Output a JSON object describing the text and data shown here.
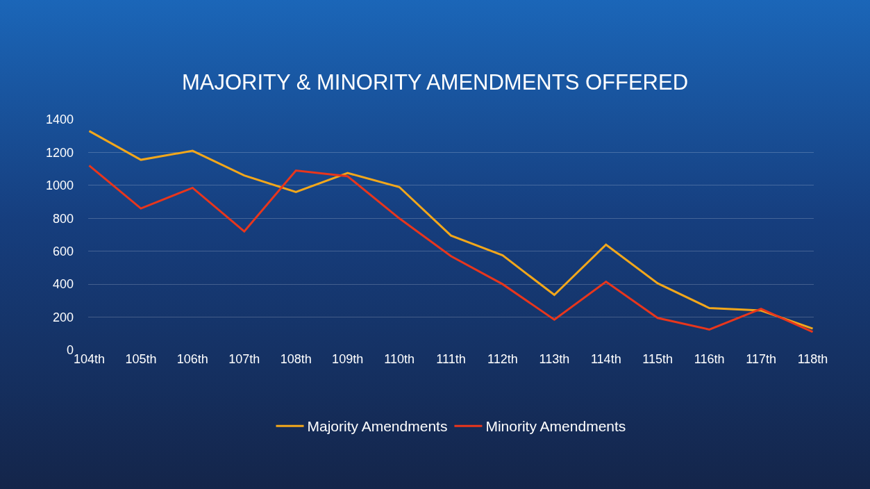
{
  "chart_data": {
    "type": "line",
    "title": "MAJORITY & MINORITY AMENDMENTS OFFERED",
    "categories": [
      "104th",
      "105th",
      "106th",
      "107th",
      "108th",
      "109th",
      "110th",
      "111th",
      "112th",
      "113th",
      "114th",
      "115th",
      "116th",
      "117th",
      "118th"
    ],
    "series": [
      {
        "name": "Majority Amendments",
        "color": "#f2a71b",
        "values": [
          1330,
          1155,
          1210,
          1060,
          960,
          1075,
          990,
          695,
          575,
          335,
          640,
          405,
          255,
          240,
          130
        ]
      },
      {
        "name": "Minority Amendments",
        "color": "#e8361c",
        "values": [
          1120,
          860,
          985,
          720,
          1090,
          1055,
          800,
          570,
          400,
          185,
          415,
          195,
          125,
          250,
          110
        ]
      }
    ],
    "ylim": [
      0,
      1400
    ],
    "yticks": [
      0,
      200,
      400,
      600,
      800,
      1000,
      1200,
      1400
    ],
    "grid": "y",
    "legend": "bottom",
    "marker": "none",
    "line_style": "solid"
  }
}
